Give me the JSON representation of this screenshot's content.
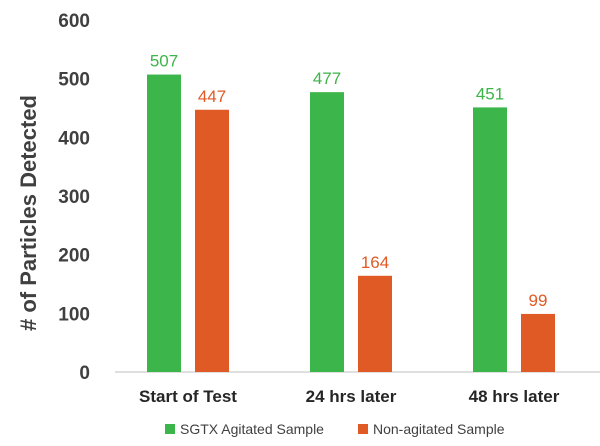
{
  "chart_data": {
    "type": "bar",
    "title": "",
    "xlabel": "",
    "ylabel": "# of Particles Detected",
    "ylim": [
      0,
      600
    ],
    "yticks": [
      0,
      100,
      200,
      300,
      400,
      500,
      600
    ],
    "grid": false,
    "legend_position": "bottom",
    "categories": [
      "Start of Test",
      "24 hrs later",
      "48 hrs later"
    ],
    "series": [
      {
        "name": "SGTX Agitated Sample",
        "color": "#3cb54a",
        "values": [
          507,
          477,
          451
        ]
      },
      {
        "name": "Non-agitated Sample",
        "color": "#e05a25",
        "values": [
          447,
          164,
          99
        ]
      }
    ]
  }
}
